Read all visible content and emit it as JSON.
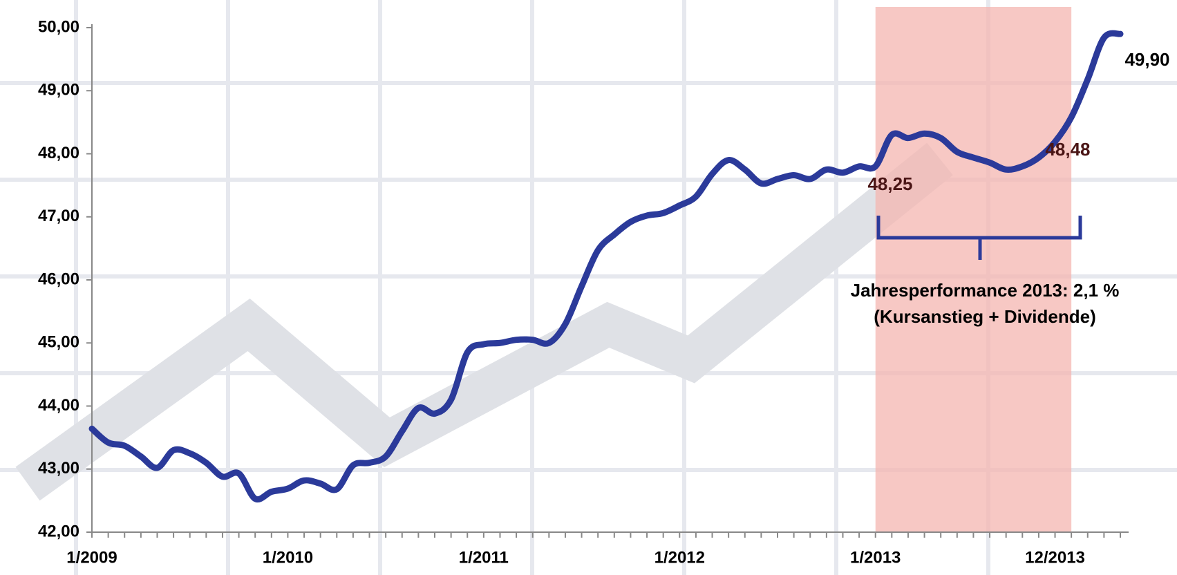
{
  "chart_data": {
    "type": "line",
    "categories": [
      "1/2009",
      null,
      null,
      null,
      null,
      null,
      null,
      null,
      null,
      null,
      null,
      null,
      "1/2010",
      null,
      null,
      null,
      null,
      null,
      null,
      null,
      null,
      null,
      null,
      null,
      "1/2011",
      null,
      null,
      null,
      null,
      null,
      null,
      null,
      null,
      null,
      null,
      null,
      "1/2012",
      null,
      null,
      null,
      null,
      null,
      null,
      null,
      null,
      null,
      null,
      null,
      "1/2013",
      null,
      null,
      null,
      null,
      null,
      null,
      null,
      null,
      null,
      null,
      "12/2013",
      null,
      null,
      null,
      null
    ],
    "series": [
      {
        "color": "#2b3a9a",
        "values": [
          43.64,
          43.42,
          43.37,
          43.2,
          43.02,
          43.3,
          43.25,
          43.1,
          42.88,
          42.93,
          42.53,
          42.64,
          42.69,
          42.82,
          42.77,
          42.68,
          43.06,
          43.1,
          43.2,
          43.6,
          43.97,
          43.88,
          44.1,
          44.85,
          44.98,
          45.0,
          45.05,
          45.05,
          45.0,
          45.3,
          45.9,
          46.47,
          46.72,
          46.92,
          47.02,
          47.06,
          47.18,
          47.32,
          47.68,
          47.9,
          47.75,
          47.53,
          47.6,
          47.66,
          47.6,
          47.75,
          47.7,
          47.8,
          47.8,
          48.3,
          48.25,
          48.32,
          48.25,
          48.03,
          47.94,
          47.86,
          47.75,
          47.8,
          47.94,
          48.19,
          48.58,
          49.18,
          49.84,
          49.9
        ]
      }
    ],
    "ylim": [
      42,
      50
    ],
    "yticks": [
      {
        "value": 42,
        "label": "42,00"
      },
      {
        "value": 43,
        "label": "43,00"
      },
      {
        "value": 44,
        "label": "44,00"
      },
      {
        "value": 45,
        "label": "45,00"
      },
      {
        "value": 46,
        "label": "46,00"
      },
      {
        "value": 47,
        "label": "47,00"
      },
      {
        "value": 48,
        "label": "48,00"
      },
      {
        "value": 49,
        "label": "49,00"
      },
      {
        "value": 50,
        "label": "50,00"
      }
    ],
    "highlight": [
      "1/2013",
      "12/2013"
    ],
    "highlight_color": "#f4b6b0",
    "annotations": [
      "48,25",
      "48,48",
      "49,90",
      "Jahresperformance 2013: 2,1 %",
      "(Kursanstieg + Dividende)"
    ]
  }
}
